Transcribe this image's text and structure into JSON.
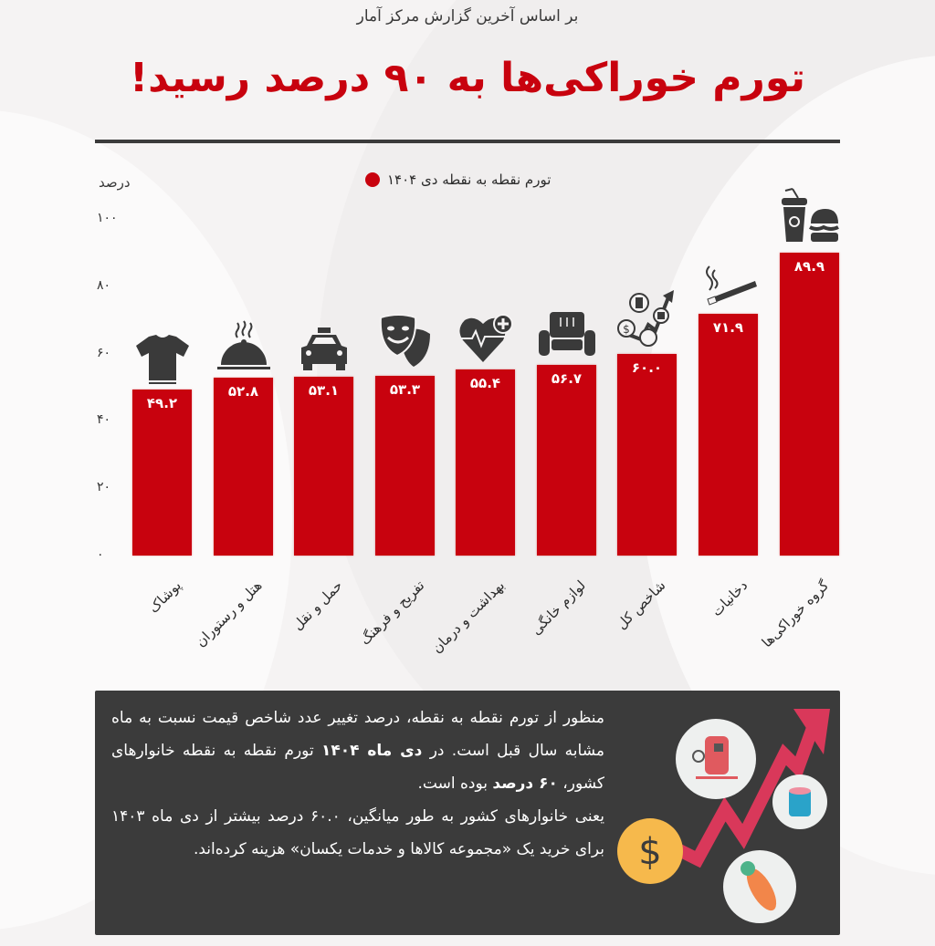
{
  "header": {
    "subtitle": "بر اساس آخرین گزارش مرکز آمار",
    "title": "تورم خوراکی‌ها به ۹۰ درصد رسید!"
  },
  "legend": {
    "label": "تورم نقطه به نقطه دی ۱۴۰۴",
    "color": "#c8020e"
  },
  "axis": {
    "unit_label": "درصد",
    "ticks": [
      "۰",
      "۲۰",
      "۴۰",
      "۶۰",
      "۸۰",
      "۱۰۰"
    ]
  },
  "bars": [
    {
      "label": "پوشاک",
      "value_text": "۴۹.۲",
      "icon": "tshirt-icon"
    },
    {
      "label": "هتل و رستوران",
      "value_text": "۵۲.۸",
      "icon": "food-cloche-icon"
    },
    {
      "label": "حمل و نقل",
      "value_text": "۵۳.۱",
      "icon": "taxi-icon"
    },
    {
      "label": "تفریح و فرهنگ",
      "value_text": "۵۳.۳",
      "icon": "theater-masks-icon"
    },
    {
      "label": "بهداشت و درمان",
      "value_text": "۵۵.۴",
      "icon": "heart-health-icon"
    },
    {
      "label": "لوازم خانگی",
      "value_text": "۵۶.۷",
      "icon": "armchair-icon"
    },
    {
      "label": "شاخص کل",
      "value_text": "۶۰.۰",
      "icon": "price-index-icon"
    },
    {
      "label": "دخانیات",
      "value_text": "۷۱.۹",
      "icon": "cigarette-icon"
    },
    {
      "label": "گروه خوراکی‌ها",
      "value_text": "۸۹.۹",
      "icon": "fastfood-icon"
    }
  ],
  "info": {
    "p1_a": "منظور از تورم نقطه به نقطه، درصد تغییر عدد شاخص قیمت نسبت به ماه مشابه سال قبل است. در ",
    "p1_b": "دی ماه ۱۴۰۴",
    "p1_c": " تورم نقطه به نقطه خانوارهای کشور، ",
    "p1_d": "۶۰ درصد",
    "p1_e": " بوده است.",
    "p2": "یعنی خانوارهای کشور به طور میانگین، ۶۰.۰ درصد بیشتر از دی ماه ۱۴۰۳ برای خرید یک «مجموعه کالاها و خدمات یکسان» هزینه کرده‌اند."
  },
  "chart_data": {
    "type": "bar",
    "title": "تورم خوراکی‌ها به ۹۰ درصد رسید!",
    "subtitle": "بر اساس آخرین گزارش مرکز آمار",
    "categories": [
      "پوشاک",
      "هتل و رستوران",
      "حمل و نقل",
      "تفریح و فرهنگ",
      "بهداشت و درمان",
      "لوازم خانگی",
      "شاخص کل",
      "دخانیات",
      "گروه خوراکی‌ها"
    ],
    "series": [
      {
        "name": "تورم نقطه به نقطه دی ۱۴۰۴",
        "values": [
          49.2,
          52.8,
          53.1,
          53.3,
          55.4,
          56.7,
          60.0,
          71.9,
          89.9
        ],
        "color": "#c8020e"
      }
    ],
    "xlabel": "",
    "ylabel": "درصد",
    "ylim": [
      0,
      100
    ],
    "yticks": [
      0,
      20,
      40,
      60,
      80,
      100
    ],
    "grid": false,
    "legend_position": "top"
  }
}
